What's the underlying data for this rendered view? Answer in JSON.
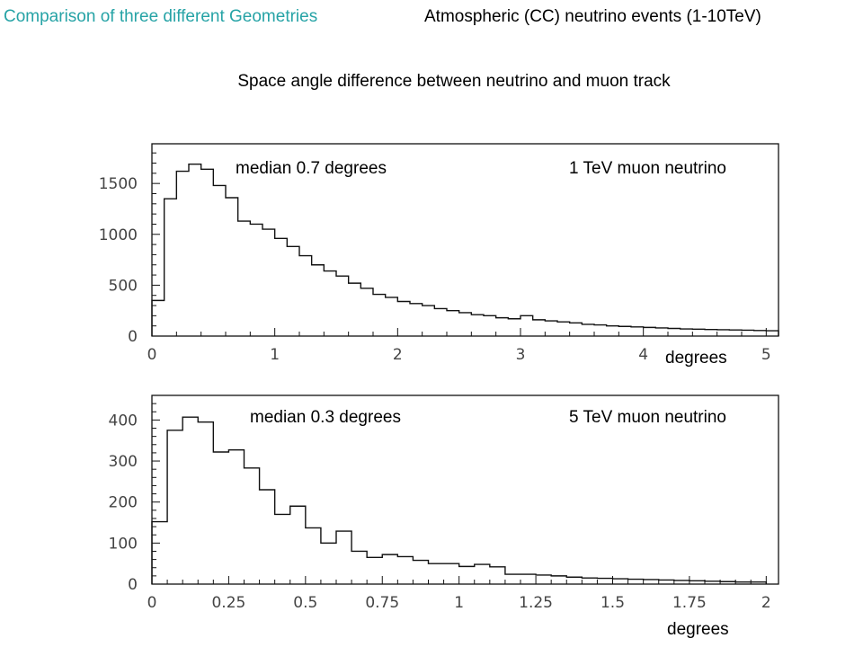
{
  "header": {
    "left_title": "Comparison of three different Geometries",
    "right_title": "Atmospheric (CC) neutrino events (1-10TeV)",
    "left_color": "#26a3a6"
  },
  "subtitle": "Space angle difference between neutrino and muon track",
  "chart_data": [
    {
      "type": "histogram",
      "annotations": [
        "median 0.7 degrees",
        "1 TeV muon neutrino"
      ],
      "xlabel": "degrees",
      "xlim": [
        0,
        5.1
      ],
      "ylim": [
        0,
        1890
      ],
      "x_ticks": [
        0,
        1,
        2,
        3,
        4,
        5
      ],
      "y_ticks": [
        0,
        500,
        1000,
        1500
      ],
      "bin_width": 0.1,
      "values": [
        350,
        1350,
        1620,
        1690,
        1640,
        1480,
        1360,
        1130,
        1100,
        1050,
        960,
        880,
        790,
        700,
        640,
        590,
        520,
        470,
        410,
        380,
        340,
        320,
        300,
        270,
        250,
        230,
        210,
        200,
        180,
        170,
        200,
        160,
        150,
        140,
        130,
        115,
        110,
        100,
        95,
        90,
        85,
        80,
        75,
        70,
        68,
        65,
        62,
        60,
        58,
        55,
        52
      ]
    },
    {
      "type": "histogram",
      "annotations": [
        "median 0.3 degrees",
        "5 TeV muon neutrino"
      ],
      "xlabel": "degrees",
      "xlim": [
        0,
        2.04
      ],
      "ylim": [
        0,
        460
      ],
      "x_ticks": [
        0,
        0.25,
        0.5,
        0.75,
        1,
        1.25,
        1.5,
        1.75,
        2
      ],
      "y_ticks": [
        0,
        100,
        200,
        300,
        400
      ],
      "bin_width": 0.05,
      "values": [
        152,
        375,
        407,
        395,
        322,
        327,
        283,
        230,
        170,
        190,
        137,
        100,
        129,
        80,
        65,
        72,
        67,
        58,
        50,
        50,
        43,
        48,
        42,
        24,
        24,
        22,
        20,
        17,
        15,
        14,
        13,
        12,
        11,
        10,
        9,
        8,
        7,
        6,
        5,
        5
      ]
    }
  ]
}
